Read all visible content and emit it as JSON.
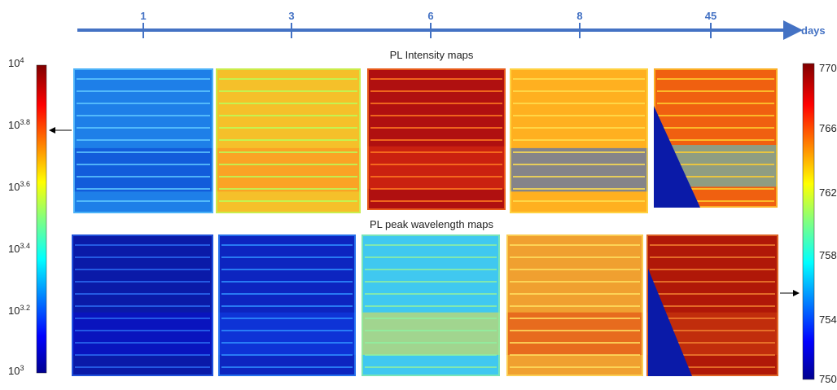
{
  "timeline": {
    "ticks": [
      "1",
      "3",
      "6",
      "8",
      "45"
    ],
    "unit": "days"
  },
  "rows": [
    {
      "title": "PL Intensity maps"
    },
    {
      "title": "PL peak wavelength maps"
    }
  ],
  "colorbar_left": {
    "ticks": [
      {
        "base": "10",
        "exp": "4"
      },
      {
        "base": "10",
        "exp": "3.8"
      },
      {
        "base": "10",
        "exp": "3.6"
      },
      {
        "base": "10",
        "exp": "3.4"
      },
      {
        "base": "10",
        "exp": "3.2"
      },
      {
        "base": "10",
        "exp": "3"
      }
    ]
  },
  "colorbar_right": {
    "ticks": [
      "770",
      "766",
      "762",
      "758",
      "754",
      "750"
    ]
  }
}
